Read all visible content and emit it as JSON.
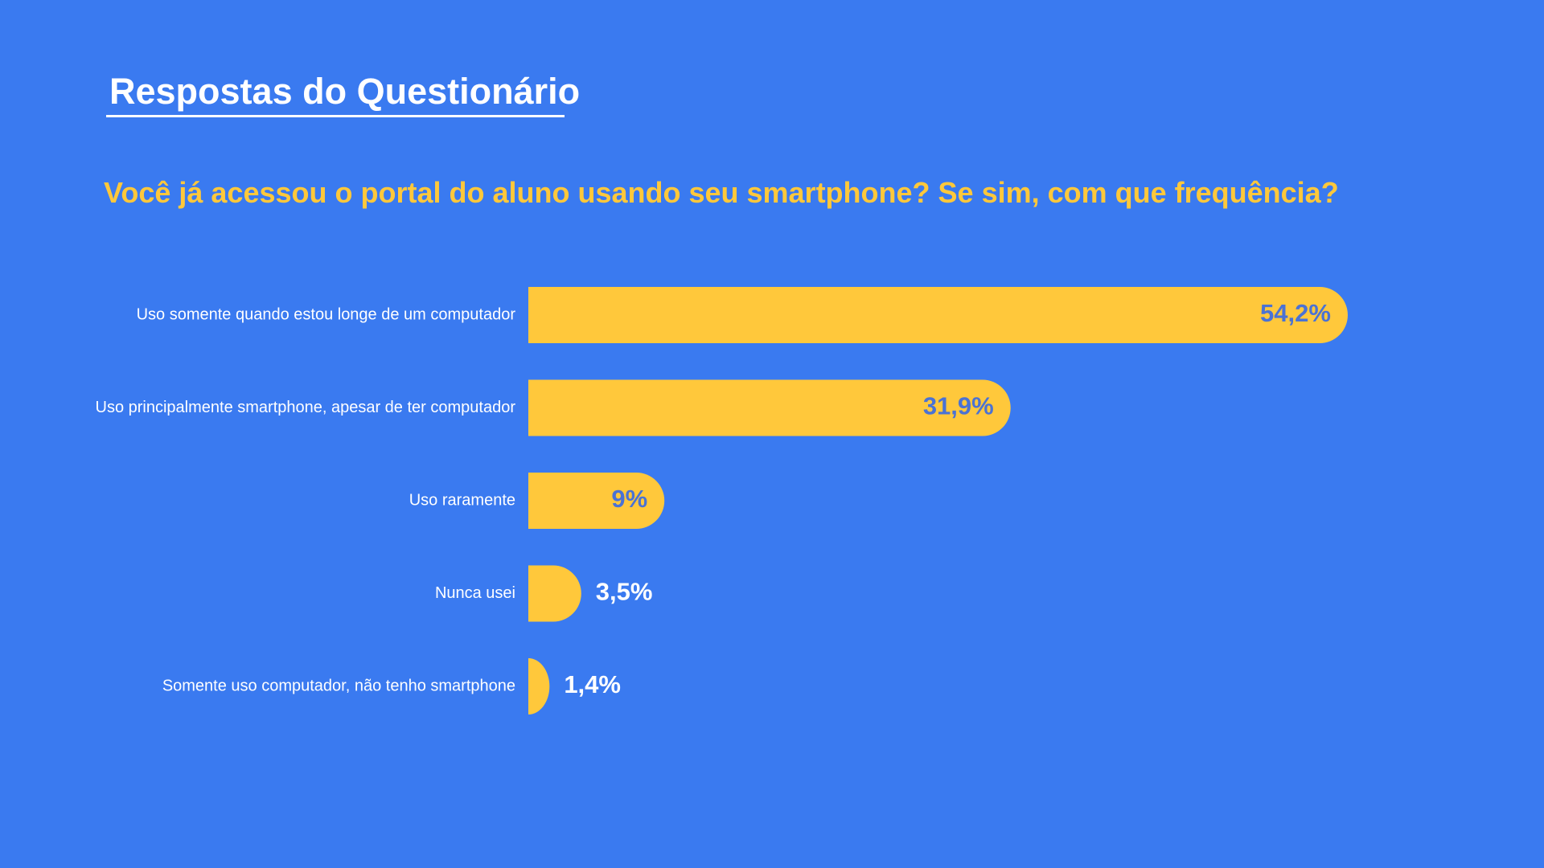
{
  "colors": {
    "background": "#3A7AF0",
    "accent": "#FFC83B",
    "text_light": "#FFFFFF",
    "value_on_bar": "#4A72D4"
  },
  "header": {
    "title": "Respostas do Questionário",
    "question": "Você já acessou o portal do aluno usando seu smartphone? Se sim, com que frequência?"
  },
  "chart_data": {
    "type": "bar",
    "orientation": "horizontal",
    "categories": [
      "Uso somente quando estou longe de um computador",
      "Uso principalmente smartphone, apesar de ter computador",
      "Uso raramente",
      "Nunca usei",
      "Somente uso computador, não tenho smartphone"
    ],
    "values": [
      54.2,
      31.9,
      9,
      3.5,
      1.4
    ],
    "value_labels": [
      "54,2%",
      "31,9%",
      "9%",
      "3,5%",
      "1,4%"
    ],
    "unit": "%",
    "grid": false,
    "legend": "none"
  }
}
